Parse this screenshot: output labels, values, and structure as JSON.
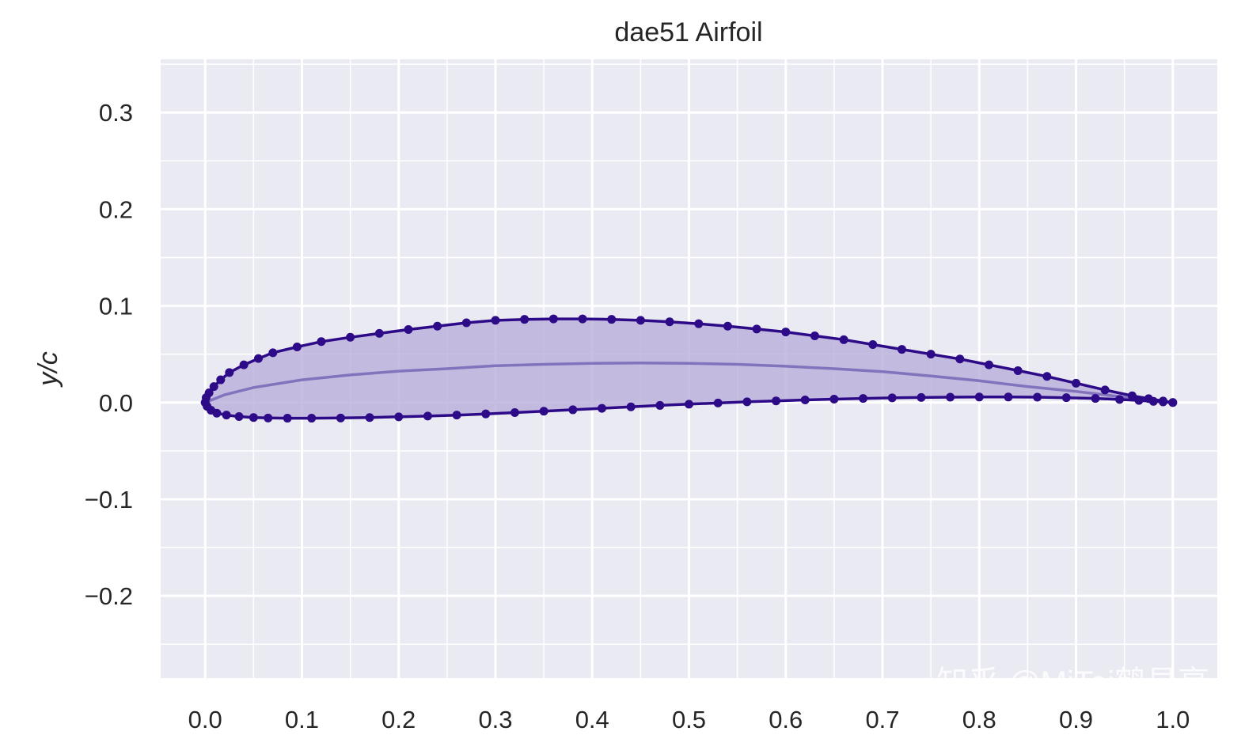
{
  "chart_data": {
    "type": "line",
    "title": "dae51 Airfoil",
    "xlabel": "",
    "ylabel": "y/c",
    "xlim": [
      -0.046,
      1.046
    ],
    "ylim": [
      -0.285,
      0.355
    ],
    "x_ticks": [
      "0.0",
      "0.1",
      "0.2",
      "0.3",
      "0.4",
      "0.5",
      "0.6",
      "0.7",
      "0.8",
      "0.9",
      "1.0"
    ],
    "y_ticks": [
      {
        "value": 0.3,
        "label": "0.3"
      },
      {
        "value": 0.2,
        "label": "0.2"
      },
      {
        "value": 0.1,
        "label": "0.1"
      },
      {
        "value": 0.0,
        "label": "0.0"
      },
      {
        "value": -0.1,
        "label": "−0.1"
      },
      {
        "value": -0.2,
        "label": "−0.2"
      }
    ],
    "grid": true,
    "minor_grid": true,
    "series": [
      {
        "role": "upper surface",
        "x": [
          1.0,
          0.99,
          0.975,
          0.958,
          0.93,
          0.9,
          0.87,
          0.84,
          0.81,
          0.78,
          0.75,
          0.72,
          0.69,
          0.66,
          0.63,
          0.6,
          0.57,
          0.54,
          0.51,
          0.48,
          0.45,
          0.42,
          0.39,
          0.36,
          0.33,
          0.3,
          0.27,
          0.24,
          0.21,
          0.18,
          0.15,
          0.12,
          0.095,
          0.07,
          0.055,
          0.04,
          0.025,
          0.016,
          0.009,
          0.004,
          0.001,
          0.0
        ],
        "y": [
          0.0,
          0.0015,
          0.004,
          0.007,
          0.013,
          0.02,
          0.027,
          0.033,
          0.039,
          0.045,
          0.05,
          0.055,
          0.06,
          0.065,
          0.069,
          0.073,
          0.076,
          0.079,
          0.0815,
          0.0835,
          0.085,
          0.086,
          0.0865,
          0.0865,
          0.086,
          0.085,
          0.0825,
          0.079,
          0.0755,
          0.0715,
          0.0675,
          0.063,
          0.0575,
          0.0515,
          0.0455,
          0.039,
          0.031,
          0.0235,
          0.0165,
          0.01,
          0.005,
          0.0
        ]
      },
      {
        "role": "lower surface",
        "x": [
          0.0,
          0.002,
          0.006,
          0.012,
          0.022,
          0.035,
          0.05,
          0.065,
          0.085,
          0.11,
          0.14,
          0.17,
          0.2,
          0.23,
          0.26,
          0.29,
          0.32,
          0.35,
          0.38,
          0.41,
          0.44,
          0.47,
          0.5,
          0.53,
          0.56,
          0.59,
          0.62,
          0.65,
          0.68,
          0.71,
          0.74,
          0.77,
          0.8,
          0.83,
          0.86,
          0.89,
          0.92,
          0.945,
          0.965,
          0.98,
          0.99,
          1.0
        ],
        "y": [
          0.0,
          -0.004,
          -0.008,
          -0.011,
          -0.013,
          -0.0145,
          -0.0155,
          -0.016,
          -0.0162,
          -0.0162,
          -0.016,
          -0.0155,
          -0.0148,
          -0.014,
          -0.013,
          -0.0118,
          -0.0104,
          -0.009,
          -0.0075,
          -0.006,
          -0.0045,
          -0.003,
          -0.0017,
          -0.0005,
          0.0007,
          0.0017,
          0.0027,
          0.0035,
          0.0042,
          0.0048,
          0.0052,
          0.0055,
          0.0057,
          0.0057,
          0.0055,
          0.005,
          0.0042,
          0.0032,
          0.0022,
          0.0012,
          0.0006,
          0.0
        ]
      }
    ],
    "camber_line": {
      "x": [
        0.0,
        0.02,
        0.05,
        0.1,
        0.15,
        0.2,
        0.25,
        0.3,
        0.35,
        0.4,
        0.45,
        0.5,
        0.55,
        0.6,
        0.65,
        0.7,
        0.75,
        0.8,
        0.85,
        0.9,
        0.95,
        1.0
      ],
      "y": [
        0.0,
        0.008,
        0.0155,
        0.0235,
        0.0285,
        0.0325,
        0.035,
        0.038,
        0.0395,
        0.0405,
        0.041,
        0.0405,
        0.0395,
        0.0375,
        0.035,
        0.032,
        0.0275,
        0.0225,
        0.0165,
        0.0115,
        0.0055,
        0.0
      ]
    },
    "colors": {
      "line": "#2d0a87",
      "fill": "#b9aedb",
      "camber": "#7b6bb8",
      "background": "#eaeaf2",
      "grid": "#ffffff",
      "text": "#262626"
    }
  },
  "watermark": "知乎 @MiTei鹤見亭"
}
